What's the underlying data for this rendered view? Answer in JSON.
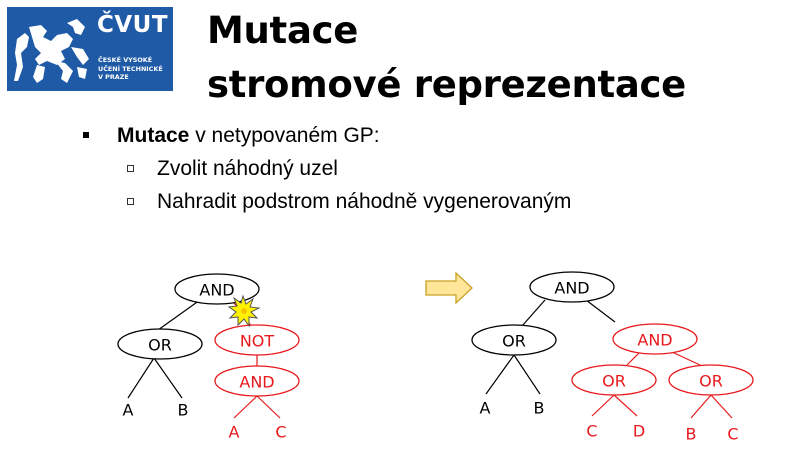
{
  "logo": {
    "name": "ČVUT",
    "subtitle": "ČESKÉ VYSOKÉ\nUČENÍ TECHNICKÉ\nV PRAZE"
  },
  "title": {
    "line1": "Mutace",
    "line2": "stromové reprezentace"
  },
  "bullets": {
    "main_bold": "Mutace",
    "main_rest": " v netypovaném GP:",
    "sub": [
      "Zvolit náhodný uzel",
      "Nahradit podstrom náhodně vygenerovaným"
    ]
  },
  "diagram": {
    "colors": {
      "normal": "#000000",
      "mutated": "#e8191c",
      "arrow_fill": "#ffe699",
      "arrow_stroke": "#c9a227",
      "star": "#fff200"
    },
    "left_tree": {
      "nodes": [
        "AND",
        "OR",
        "NOT",
        "AND"
      ],
      "leaves": [
        "A",
        "B",
        "A",
        "C"
      ]
    },
    "right_tree": {
      "nodes": [
        "AND",
        "OR",
        "AND",
        "OR",
        "OR"
      ],
      "leaves": [
        "A",
        "B",
        "C",
        "D",
        "B",
        "C"
      ]
    }
  }
}
